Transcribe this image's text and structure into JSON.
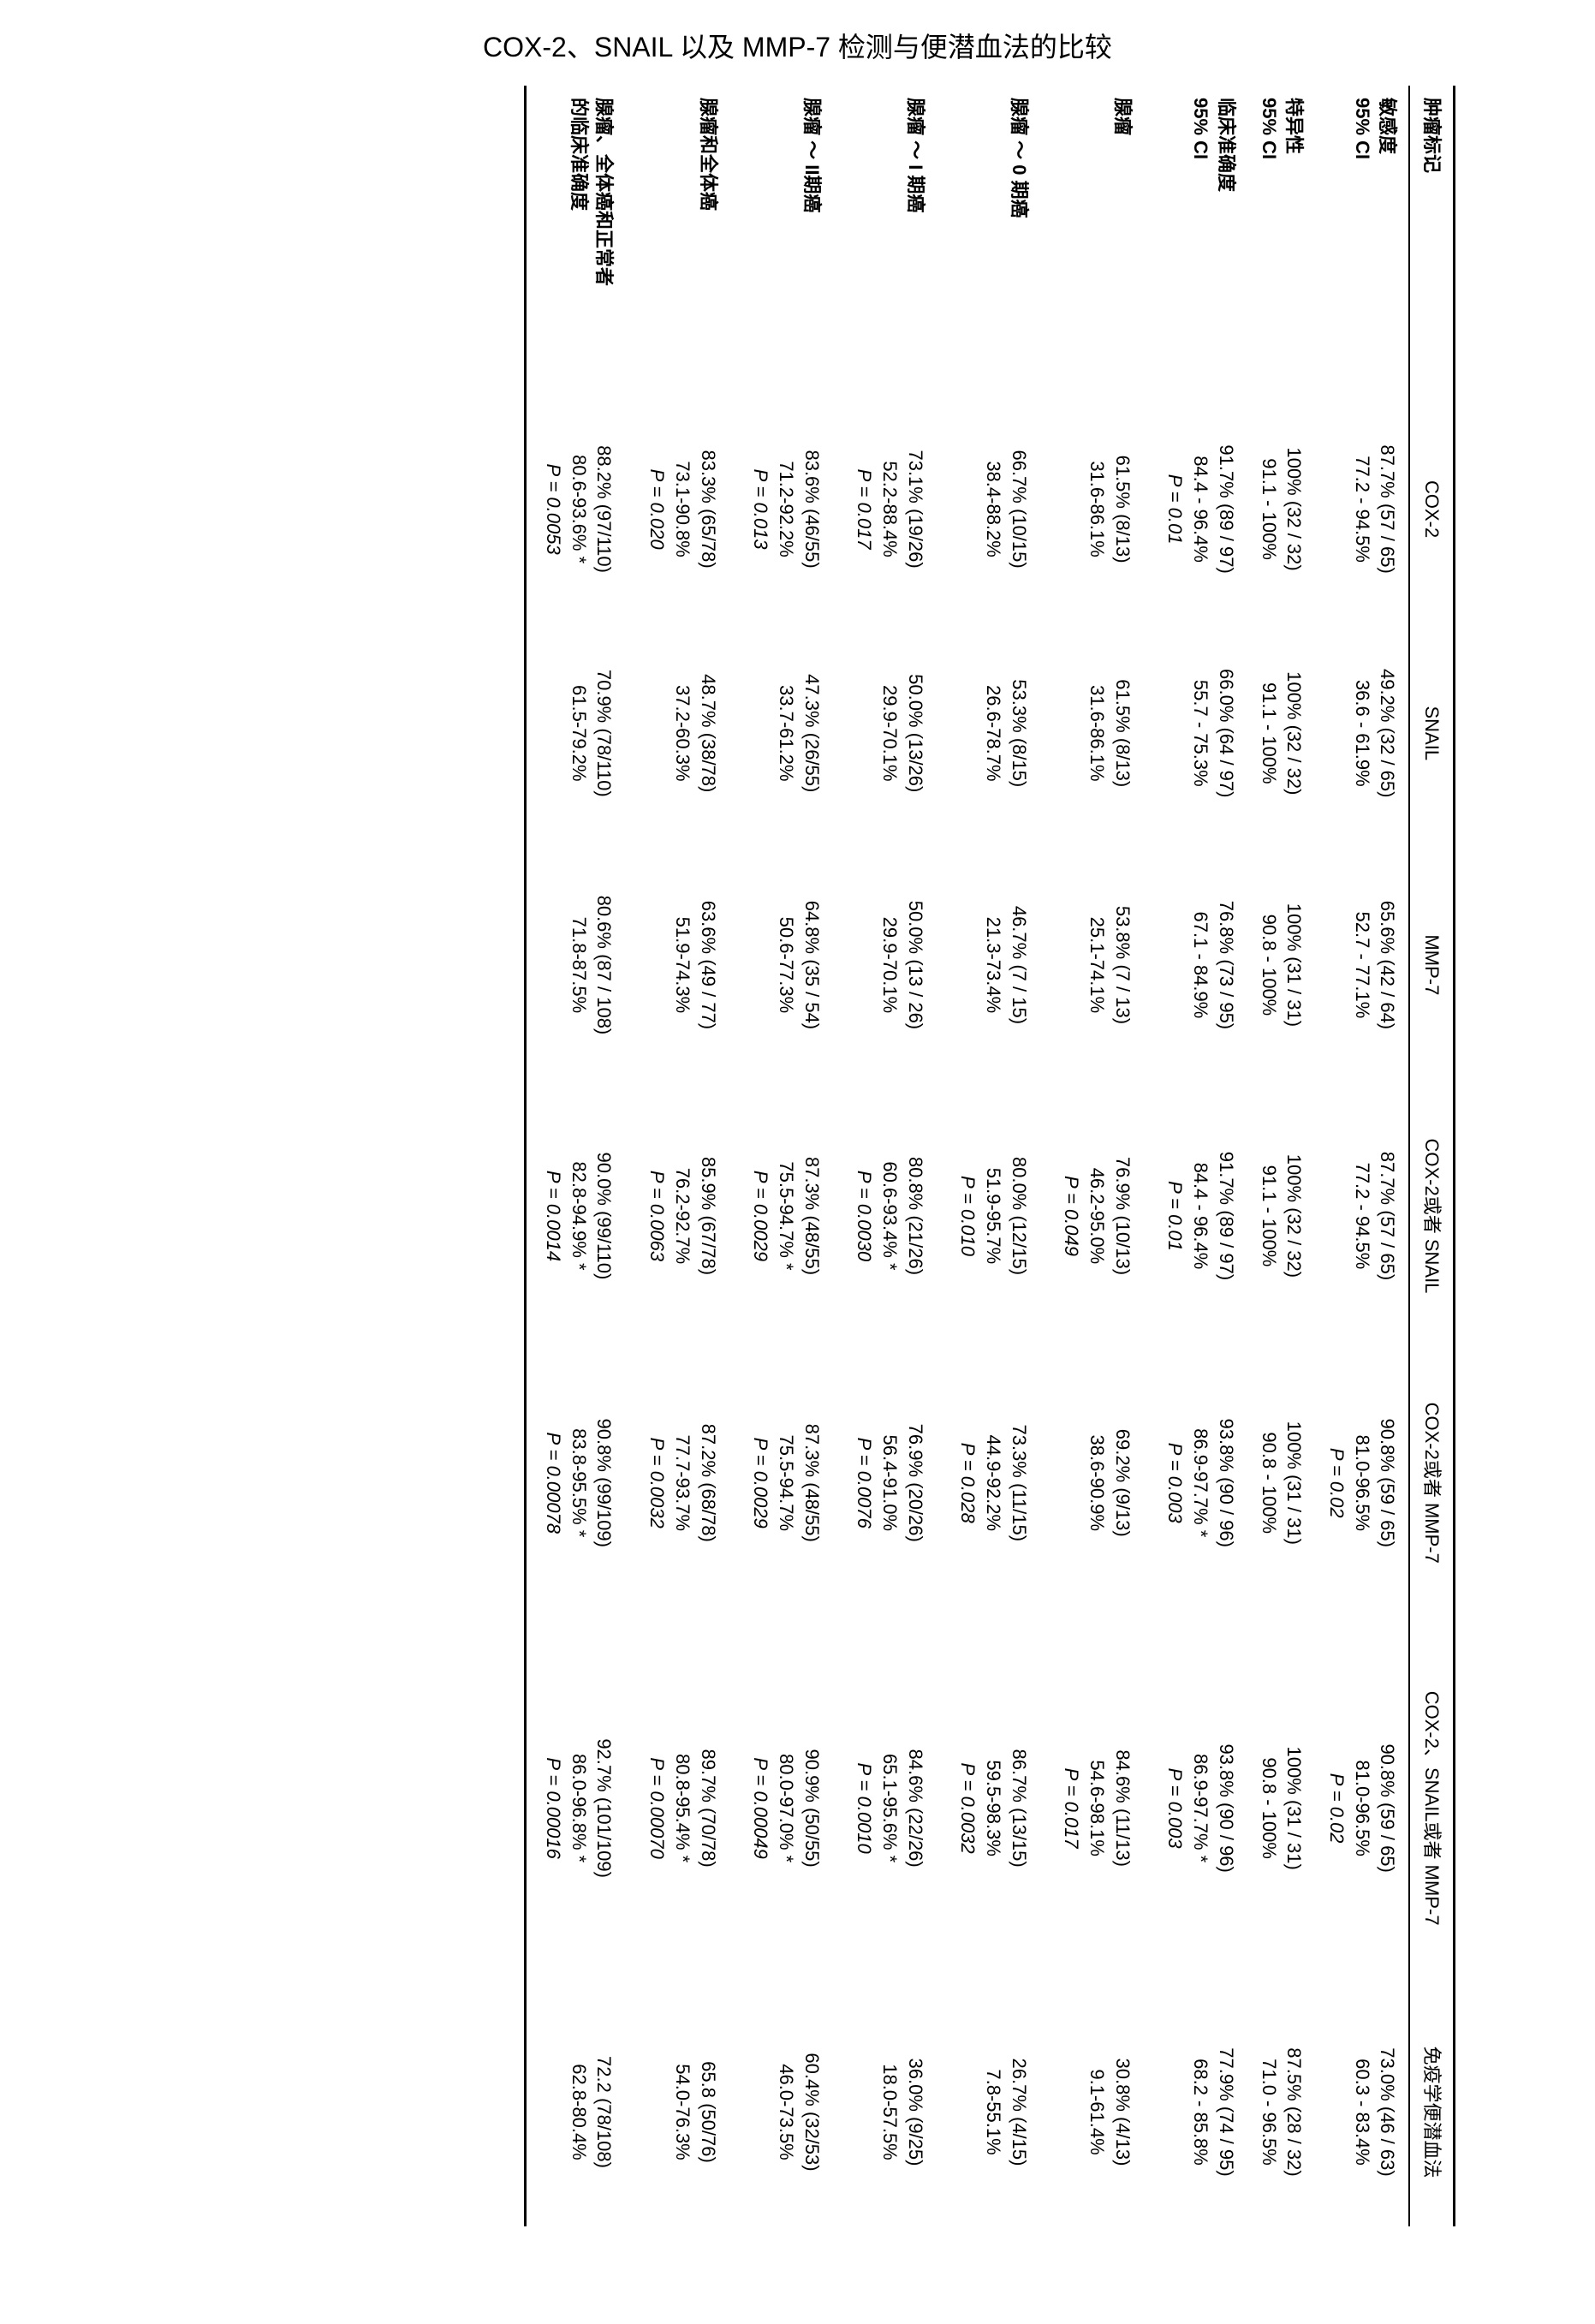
{
  "title": "COX-2、SNAIL 以及 MMP-7 检测与便潜血法的比较",
  "columns": [
    "肿瘤标记",
    "COX-2",
    "SNAIL",
    "MMP-7",
    "COX-2或者 SNAIL",
    "COX-2或者 MMP-7",
    "COX-2、SNAIL或者 MMP-7",
    "免疫学便潜血法"
  ],
  "rows": [
    {
      "label": [
        "敏感度",
        "95% CI"
      ],
      "cells": [
        [
          "87.7% (57 / 65)",
          "77.2 - 94.5%"
        ],
        [
          "49.2% (32 / 65)",
          "36.6 - 61.9%"
        ],
        [
          "65.6% (42 / 64)",
          "52.7 - 77.1%"
        ],
        [
          "87.7% (57 / 65)",
          "77.2 - 94.5%"
        ],
        [
          "90.8% (59 / 65)",
          "81.0-96.5%",
          "P = 0.02"
        ],
        [
          "90.8% (59 / 65)",
          "81.0-96.5%",
          "P = 0.02"
        ],
        [
          "73.0% (46 / 63)",
          "60.3 - 83.4%"
        ]
      ]
    },
    {
      "label": [
        "特异性",
        "95% CI"
      ],
      "cells": [
        [
          "100% (32 / 32)",
          "91.1 - 100%"
        ],
        [
          "100% (32 / 32)",
          "91.1 - 100%"
        ],
        [
          "100% (31 / 31)",
          "90.8 - 100%"
        ],
        [
          "100% (32 / 32)",
          "91.1 - 100%"
        ],
        [
          "100% (31 / 31)",
          "90.8 - 100%"
        ],
        [
          "100% (31 / 31)",
          "90.8 - 100%"
        ],
        [
          "87.5% (28 / 32)",
          "71.0 - 96.5%"
        ]
      ]
    },
    {
      "label": [
        "临床准确度",
        "95% CI"
      ],
      "cells": [
        [
          "91.7% (89 / 97)",
          "84.4 - 96.4%",
          "P = 0.01"
        ],
        [
          "66.0% (64 / 97)",
          "55.7 - 75.3%"
        ],
        [
          "76.8% (73 / 95)",
          "67.1 - 84.9%"
        ],
        [
          "91.7% (89 / 97)",
          "84.4 - 96.4%",
          "P = 0.01"
        ],
        [
          "93.8% (90 / 96)",
          "86.9-97.7% *",
          "P = 0.003"
        ],
        [
          "93.8% (90 / 96)",
          "86.9-97.7% *",
          "P = 0.003"
        ],
        [
          "77.9% (74 / 95)",
          "68.2 - 85.8%"
        ]
      ]
    },
    {
      "label": [
        "腺瘤"
      ],
      "sep": true,
      "cells": [
        [
          "61.5% (8/13)",
          "31.6-86.1%"
        ],
        [
          "61.5% (8/13)",
          "31.6-86.1%"
        ],
        [
          "53.8% (7 / 13)",
          "25.1-74.1%"
        ],
        [
          "76.9% (10/13)",
          "46.2-95.0%",
          "P = 0.049"
        ],
        [
          "69.2% (9/13)",
          "38.6-90.9%"
        ],
        [
          "84.6% (11/13)",
          "54.6-98.1%",
          "P = 0.017"
        ],
        [
          "30.8% (4/13)",
          "9.1-61.4%"
        ]
      ]
    },
    {
      "label": [
        "腺瘤 ～ 0 期癌"
      ],
      "sep": true,
      "cells": [
        [
          "66.7% (10/15)",
          "38.4-88.2%"
        ],
        [
          "53.3% (8/15)",
          "26.6-78.7%"
        ],
        [
          "46.7% (7 / 15)",
          "21.3-73.4%"
        ],
        [
          "80.0% (12/15)",
          "51.9-95.7%",
          "P = 0.010"
        ],
        [
          "73.3% (11/15)",
          "44.9-92.2%",
          "P = 0.028"
        ],
        [
          "86.7% (13/15)",
          "59.5-98.3%",
          "P = 0.0032"
        ],
        [
          "26.7% (4/15)",
          "7.8-55.1%"
        ]
      ]
    },
    {
      "label": [
        "腺瘤 ～ I 期癌"
      ],
      "sep": true,
      "cells": [
        [
          "73.1% (19/26)",
          "52.2-88.4%",
          "P = 0.017"
        ],
        [
          "50.0% (13/26)",
          "29.9-70.1%"
        ],
        [
          "50.0% (13 / 26)",
          "29.9-70.1%"
        ],
        [
          "80.8% (21/26)",
          "60.6-93.4% *",
          "P = 0.0030"
        ],
        [
          "76.9% (20/26)",
          "56.4-91.0%",
          "P = 0.0076"
        ],
        [
          "84.6% (22/26)",
          "65.1-95.6% *",
          "P = 0.0010"
        ],
        [
          "36.0% (9/25)",
          "18.0-57.5%"
        ]
      ]
    },
    {
      "label": [
        "腺瘤 ～ II期癌"
      ],
      "sep": true,
      "cells": [
        [
          "83.6% (46/55)",
          "71.2-92.2%",
          "P = 0.013"
        ],
        [
          "47.3% (26/55)",
          "33.7-61.2%"
        ],
        [
          "64.8% (35 / 54)",
          "50.6-77.3%"
        ],
        [
          "87.3% (48/55)",
          "75.5-94.7% *",
          "P = 0.0029"
        ],
        [
          "87.3% (48/55)",
          "75.5-94.7%",
          "P = 0.0029"
        ],
        [
          "90.9% (50/55)",
          "80.0-97.0% *",
          "P = 0.00049"
        ],
        [
          "60.4% (32/53)",
          "46.0-73.5%"
        ]
      ]
    },
    {
      "label": [
        "腺瘤和全体癌"
      ],
      "sep": true,
      "cells": [
        [
          "83.3% (65/78)",
          "73.1-90.8%",
          "P = 0.020"
        ],
        [
          "48.7% (38/78)",
          "37.2-60.3%"
        ],
        [
          "63.6% (49 / 77)",
          "51.9-74.3%"
        ],
        [
          "85.9% (67/78)",
          "76.2-92.7%",
          "P = 0.0063"
        ],
        [
          "87.2% (68/78)",
          "77.7-93.7%",
          "P = 0.0032"
        ],
        [
          "89.7% (70/78)",
          "80.8-95.4% *",
          "P = 0.00070"
        ],
        [
          "65.8 (50/76)",
          "54.0-76.3%"
        ]
      ]
    },
    {
      "label": [
        "腺瘤、全体癌和正常者",
        "的临床准确度"
      ],
      "sep": true,
      "cells": [
        [
          "88.2% (97/110)",
          "80.6-93.6% *",
          "P = 0.0053"
        ],
        [
          "70.9% (78/110)",
          "61.5-79.2%"
        ],
        [
          "80.6% (87 / 108)",
          "71.8-87.5%"
        ],
        [
          "90.0% (99/110)",
          "82.8-94.9% *",
          "P = 0.0014"
        ],
        [
          "90.8% (99/109)",
          "83.8-95.5% *",
          "P = 0.00078"
        ],
        [
          "92.7% (101/109)",
          "86.0-96.8% *",
          "P = 0.00016"
        ],
        [
          "72.2 (78/108)",
          "62.8-80.4%"
        ]
      ]
    }
  ]
}
